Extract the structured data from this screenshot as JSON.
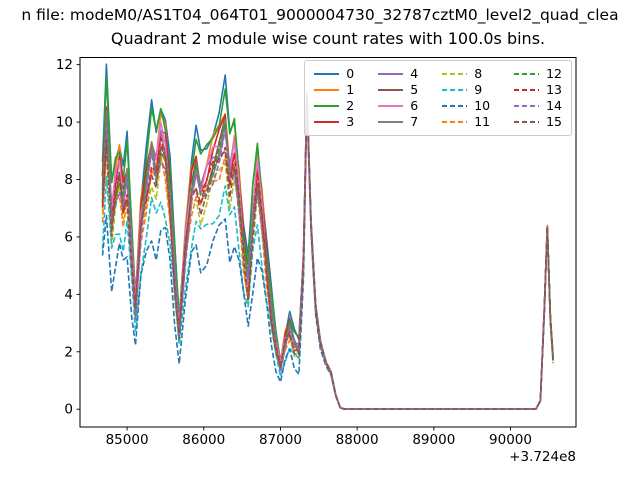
{
  "suptitle": "n file: modeM0/AS1T04_064T01_9000004730_32787cztM0_level2_quad_clea",
  "chart_data": {
    "type": "line",
    "title": "Quadrant 2 module wise count rates with 100.0s bins.",
    "xlabel": "",
    "ylabel": "",
    "offset_label": "+3.724e8",
    "x_offset": 372400000,
    "xticks": [
      85000,
      86000,
      87000,
      88000,
      89000,
      90000
    ],
    "yticks": [
      0,
      2,
      4,
      6,
      8,
      10,
      12
    ],
    "xlim": [
      84386,
      90854
    ],
    "ylim": [
      -0.62,
      12.25
    ],
    "grid": false,
    "legend": {
      "location": "upper right",
      "ncol": 4
    },
    "note": "16 module count-rate curves; per-series values = base_values * (1 - (1 - scale) * spread_weight), estimated from pixels",
    "x": [
      84680,
      84730,
      84800,
      84850,
      84900,
      84950,
      85000,
      85060,
      85110,
      85180,
      85250,
      85320,
      85380,
      85440,
      85500,
      85560,
      85620,
      85680,
      85760,
      85840,
      85900,
      85960,
      86040,
      86120,
      86200,
      86280,
      86340,
      86400,
      86460,
      86520,
      86580,
      86640,
      86700,
      86760,
      86820,
      86880,
      86940,
      87000,
      87060,
      87120,
      87180,
      87240,
      87300,
      87345,
      87400,
      87460,
      87520,
      87590,
      87660,
      87720,
      87780,
      87840,
      88000,
      88400,
      88800,
      89200,
      89600,
      90000,
      90250,
      90330,
      90390,
      90440,
      90480,
      90520,
      90555
    ],
    "base_values": [
      8.6,
      11.65,
      7.7,
      8.9,
      9.5,
      8.4,
      9.3,
      6.2,
      4.0,
      7.5,
      9.0,
      10.4,
      9.6,
      10.8,
      10.3,
      8.6,
      5.5,
      3.1,
      6.5,
      8.8,
      9.6,
      8.7,
      9.2,
      9.9,
      10.4,
      11.3,
      9.4,
      10.2,
      8.6,
      6.4,
      5.0,
      7.6,
      9.4,
      7.8,
      5.8,
      4.0,
      2.6,
      1.7,
      2.7,
      3.3,
      2.6,
      2.4,
      5.5,
      11.05,
      6.5,
      3.6,
      2.4,
      1.7,
      1.3,
      0.5,
      0.05,
      0,
      0,
      0,
      0,
      0,
      0,
      0,
      0,
      0,
      0.3,
      3.5,
      6.4,
      3.2,
      1.8
    ],
    "spread_weight": [
      1,
      1,
      1,
      1,
      1,
      1,
      1,
      1,
      1,
      1,
      1,
      1,
      1,
      1,
      1,
      1,
      1,
      1,
      1,
      1,
      1,
      1,
      1,
      1,
      1,
      1,
      1,
      1,
      1,
      1,
      1,
      1,
      1,
      1,
      1,
      1,
      1,
      1,
      1,
      1,
      1,
      1,
      0.4,
      0.08,
      0.15,
      0.2,
      0.25,
      0.25,
      0.25,
      0.2,
      0.1,
      0,
      0,
      0,
      0,
      0,
      0,
      0,
      0,
      0,
      0.1,
      0.12,
      0.06,
      0.15,
      0.25
    ],
    "series": [
      {
        "name": "0",
        "color": "#1f77b4",
        "dash": false,
        "scale": 1.0
      },
      {
        "name": "1",
        "color": "#ff7f0e",
        "dash": false,
        "scale": 0.93
      },
      {
        "name": "2",
        "color": "#2ca02c",
        "dash": false,
        "scale": 0.98
      },
      {
        "name": "3",
        "color": "#d62728",
        "dash": false,
        "scale": 0.9
      },
      {
        "name": "4",
        "color": "#9467bd",
        "dash": false,
        "scale": 0.88
      },
      {
        "name": "5",
        "color": "#8c564b",
        "dash": false,
        "scale": 0.87
      },
      {
        "name": "6",
        "color": "#e377c2",
        "dash": false,
        "scale": 0.89
      },
      {
        "name": "7",
        "color": "#7f7f7f",
        "dash": false,
        "scale": 0.86
      },
      {
        "name": "8",
        "color": "#bcbd22",
        "dash": true,
        "scale": 0.78
      },
      {
        "name": "9",
        "color": "#17becf",
        "dash": true,
        "scale": 0.68
      },
      {
        "name": "10",
        "color": "#1f77b4",
        "dash": true,
        "scale": 0.58
      },
      {
        "name": "11",
        "color": "#ff7f0e",
        "dash": true,
        "scale": 0.8
      },
      {
        "name": "12",
        "color": "#2ca02c",
        "dash": true,
        "scale": 0.85
      },
      {
        "name": "13",
        "color": "#d62728",
        "dash": true,
        "scale": 0.84
      },
      {
        "name": "14",
        "color": "#9467bd",
        "dash": true,
        "scale": 0.83
      },
      {
        "name": "15",
        "color": "#8c564b",
        "dash": true,
        "scale": 0.82
      }
    ]
  }
}
